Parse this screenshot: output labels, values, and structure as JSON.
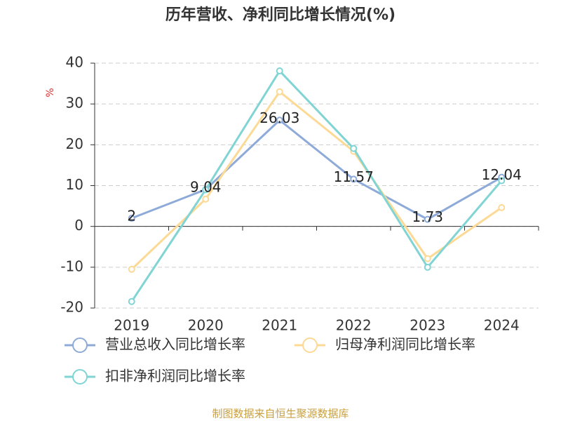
{
  "chart_data": {
    "type": "line",
    "title": "历年营收、净利同比增长情况(%)",
    "y_label": "%",
    "categories": [
      "2019",
      "2020",
      "2021",
      "2022",
      "2023",
      "2024"
    ],
    "series": [
      {
        "name": "营业总收入同比增长率",
        "color": "#8eaad9",
        "values": [
          2,
          9.04,
          26.03,
          11.57,
          1.73,
          12.04
        ],
        "show_labels": true
      },
      {
        "name": "归母净利润同比增长率",
        "color": "#fcd995",
        "values": [
          -10.5,
          6.7,
          33.0,
          18.4,
          -7.9,
          4.6
        ],
        "show_labels": false
      },
      {
        "name": "扣非净利润同比增长率",
        "color": "#80d4d4",
        "values": [
          -18.4,
          9.0,
          38.1,
          19.1,
          -10.0,
          11.2
        ],
        "show_labels": false
      }
    ],
    "ylim": [
      -20,
      40
    ],
    "yticks": [
      -20,
      -10,
      0,
      10,
      20,
      30,
      40
    ],
    "grid": true,
    "footer": "制图数据来自恒生聚源数据库"
  }
}
